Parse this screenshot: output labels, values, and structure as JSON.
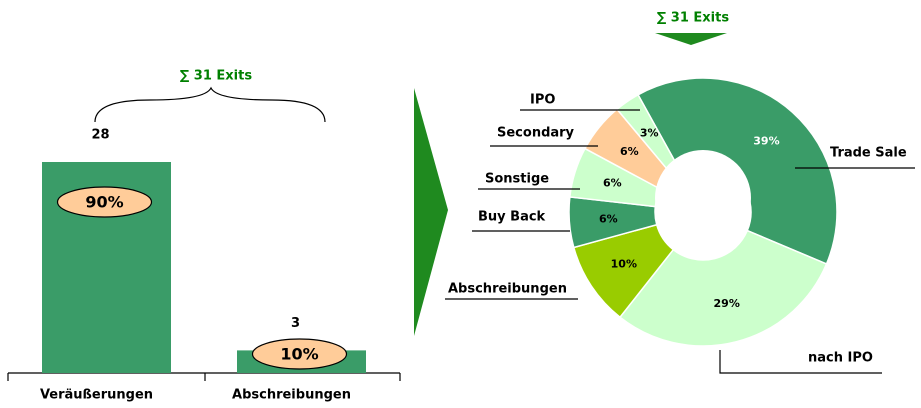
{
  "chart_data": [
    {
      "type": "bar",
      "annotation": "∑ 31 Exits",
      "categories": [
        "Veräußerungen",
        "Abschreibungen"
      ],
      "values": [
        28,
        3
      ],
      "shares": [
        "90%",
        "10%"
      ],
      "color": "#3a9c68",
      "share_color": "#ffcc99"
    },
    {
      "type": "donut",
      "annotation": "∑ 31 Exits",
      "categories": [
        "Trade Sale",
        "nach IPO",
        "Abschreibungen",
        "Buy Back",
        "Sonstige",
        "Secondary",
        "IPO"
      ],
      "values": [
        39,
        29,
        10,
        6,
        6,
        6,
        3
      ],
      "value_labels": [
        "39%",
        "29%",
        "10%",
        "6%",
        "6%",
        "6%",
        "3%"
      ],
      "colors": [
        "#3a9c68",
        "#ccffcc",
        "#99cc00",
        "#3a9c68",
        "#ccffcc",
        "#ffcc99",
        "#ccffcc"
      ]
    }
  ]
}
